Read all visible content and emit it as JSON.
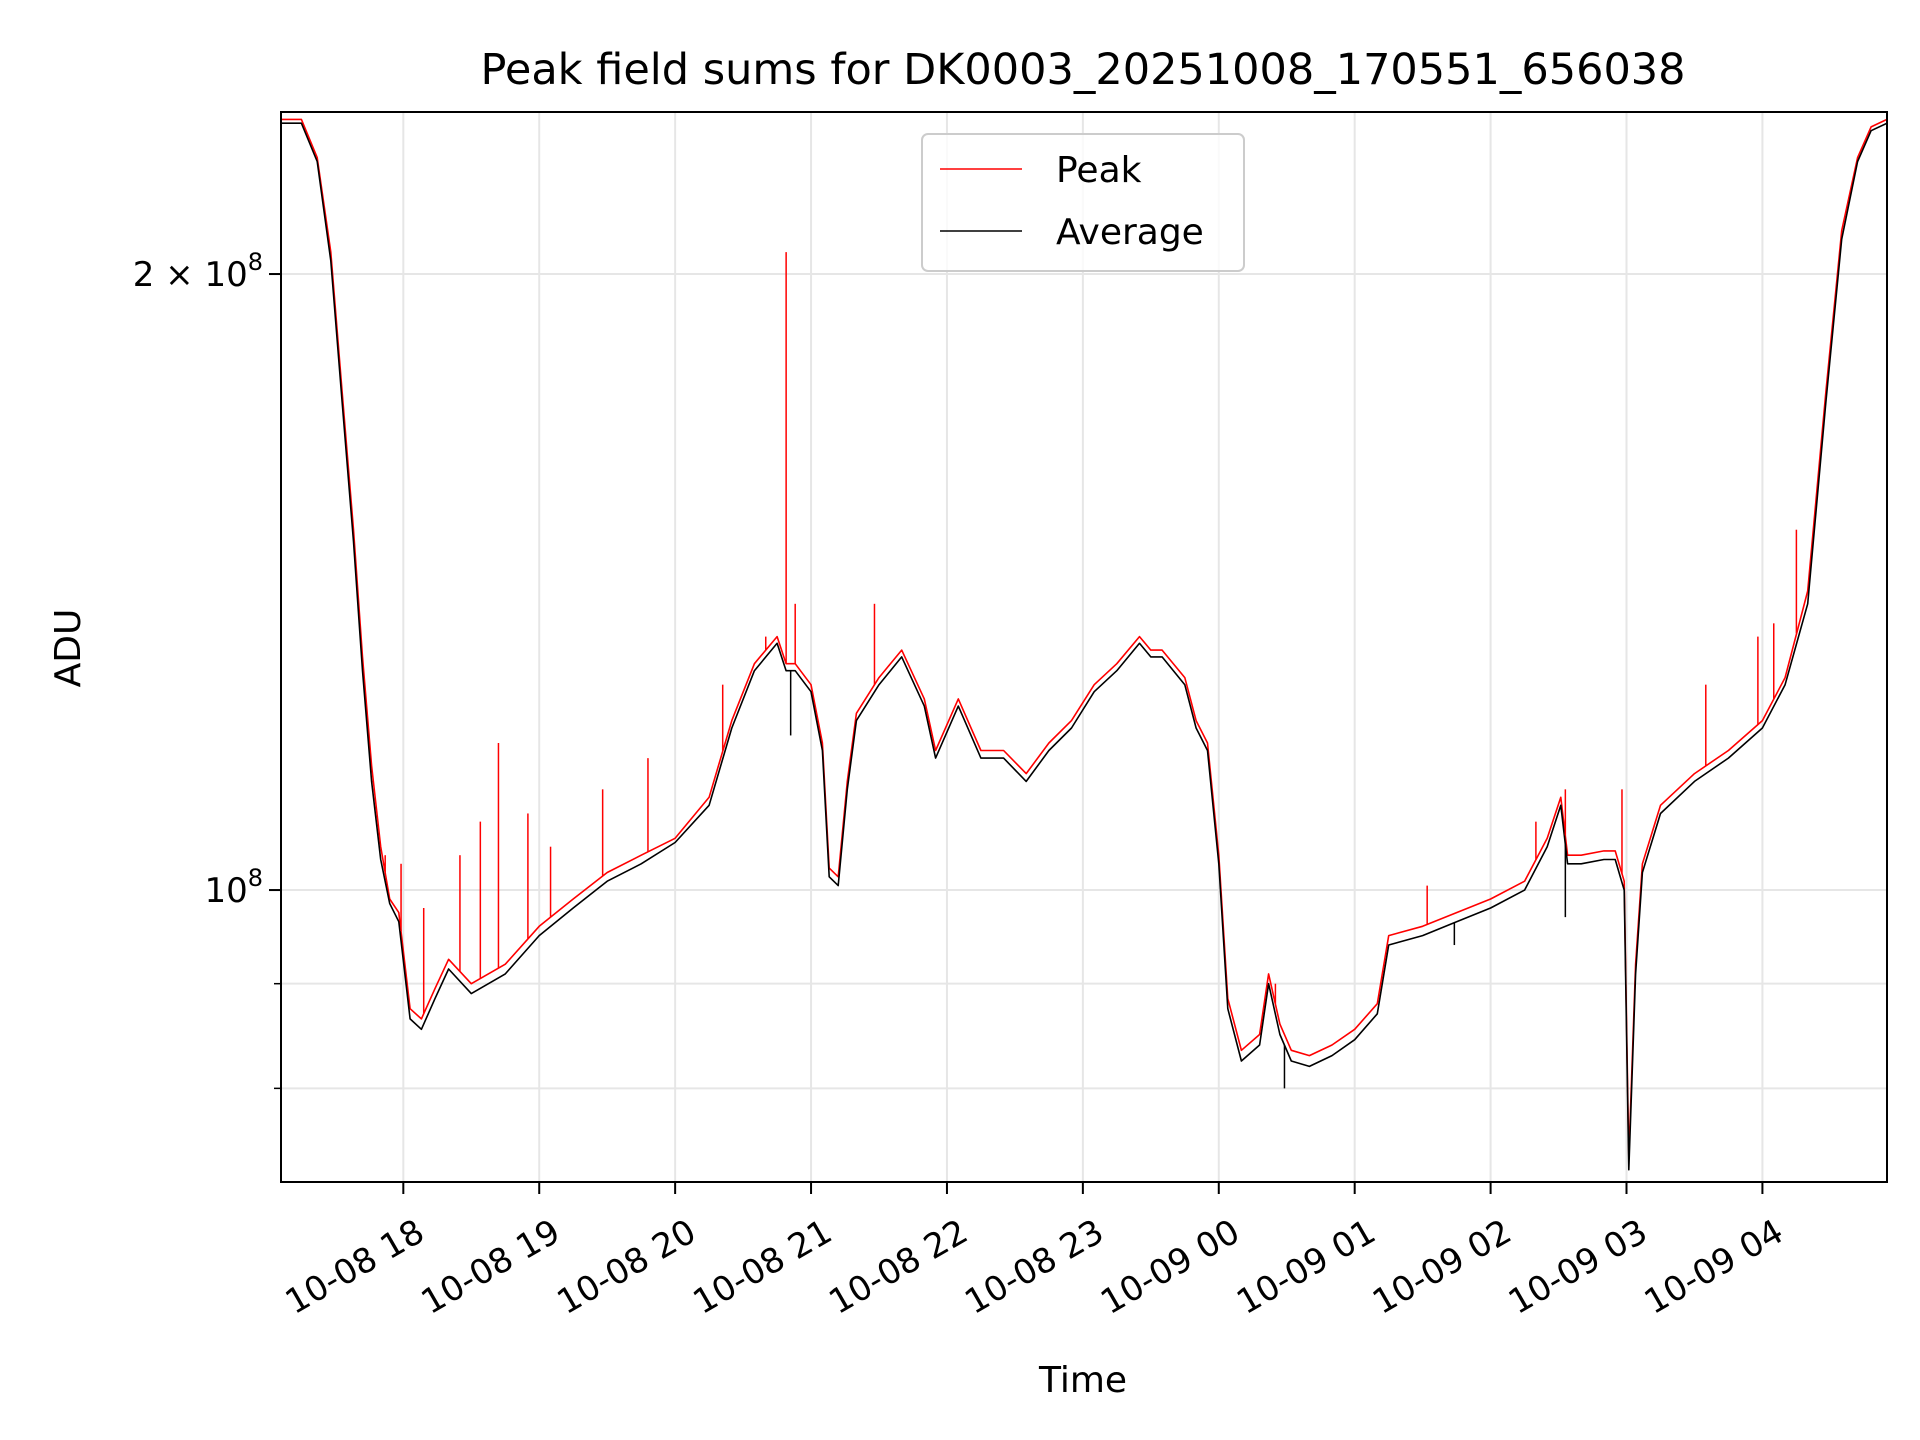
{
  "chart_data": {
    "type": "line",
    "title": "Peak field sums for DK0003_20251008_170551_656038",
    "xlabel": "Time",
    "ylabel": "ADU",
    "y_scale": "log",
    "xlim": [
      "2025-10-08 17:06",
      "2025-10-09 04:55"
    ],
    "ylim": [
      72000000,
      240000000
    ],
    "grid": true,
    "legend_position": "upper center",
    "x_ticks": [
      {
        "label": "10-08 18",
        "time": "2025-10-08 18:00"
      },
      {
        "label": "10-08 19",
        "time": "2025-10-08 19:00"
      },
      {
        "label": "10-08 20",
        "time": "2025-10-08 20:00"
      },
      {
        "label": "10-08 21",
        "time": "2025-10-08 21:00"
      },
      {
        "label": "10-08 22",
        "time": "2025-10-08 22:00"
      },
      {
        "label": "10-08 23",
        "time": "2025-10-08 23:00"
      },
      {
        "label": "10-09 00",
        "time": "2025-10-09 00:00"
      },
      {
        "label": "10-09 01",
        "time": "2025-10-09 01:00"
      },
      {
        "label": "10-09 02",
        "time": "2025-10-09 02:00"
      },
      {
        "label": "10-09 03",
        "time": "2025-10-09 03:00"
      },
      {
        "label": "10-09 04",
        "time": "2025-10-09 04:00"
      }
    ],
    "y_ticks_major": [
      {
        "label_base": "2 × 10",
        "label_exp": "8",
        "value": 200000000
      },
      {
        "label_base": "10",
        "label_exp": "8",
        "value": 100000000
      }
    ],
    "y_ticks_minor": [
      90000000,
      80000000
    ],
    "series": [
      {
        "name": "Peak",
        "color": "#ff0000",
        "x": [
          "2025-10-08 17:06",
          "2025-10-08 17:15",
          "2025-10-08 17:22",
          "2025-10-08 17:28",
          "2025-10-08 17:33",
          "2025-10-08 17:38",
          "2025-10-08 17:42",
          "2025-10-08 17:46",
          "2025-10-08 17:50",
          "2025-10-08 17:54",
          "2025-10-08 17:58",
          "2025-10-08 18:03",
          "2025-10-08 18:08",
          "2025-10-08 18:14",
          "2025-10-08 18:20",
          "2025-10-08 18:30",
          "2025-10-08 18:45",
          "2025-10-08 19:00",
          "2025-10-08 19:15",
          "2025-10-08 19:30",
          "2025-10-08 19:45",
          "2025-10-08 20:00",
          "2025-10-08 20:15",
          "2025-10-08 20:25",
          "2025-10-08 20:35",
          "2025-10-08 20:45",
          "2025-10-08 20:49",
          "2025-10-08 20:53",
          "2025-10-08 21:00",
          "2025-10-08 21:05",
          "2025-10-08 21:08",
          "2025-10-08 21:12",
          "2025-10-08 21:16",
          "2025-10-08 21:20",
          "2025-10-08 21:30",
          "2025-10-08 21:40",
          "2025-10-08 21:50",
          "2025-10-08 21:55",
          "2025-10-08 22:05",
          "2025-10-08 22:15",
          "2025-10-08 22:25",
          "2025-10-08 22:35",
          "2025-10-08 22:45",
          "2025-10-08 22:55",
          "2025-10-08 23:05",
          "2025-10-08 23:15",
          "2025-10-08 23:25",
          "2025-10-08 23:30",
          "2025-10-08 23:35",
          "2025-10-08 23:45",
          "2025-10-08 23:50",
          "2025-10-08 23:55",
          "2025-10-09 00:00",
          "2025-10-09 00:04",
          "2025-10-09 00:10",
          "2025-10-09 00:18",
          "2025-10-09 00:22",
          "2025-10-09 00:27",
          "2025-10-09 00:32",
          "2025-10-09 00:40",
          "2025-10-09 00:50",
          "2025-10-09 01:00",
          "2025-10-09 01:10",
          "2025-10-09 01:15",
          "2025-10-09 01:30",
          "2025-10-09 01:45",
          "2025-10-09 02:00",
          "2025-10-09 02:15",
          "2025-10-09 02:25",
          "2025-10-09 02:31",
          "2025-10-09 02:34",
          "2025-10-09 02:40",
          "2025-10-09 02:50",
          "2025-10-09 02:55",
          "2025-10-09 02:59",
          "2025-10-09 03:01",
          "2025-10-09 03:04",
          "2025-10-09 03:07",
          "2025-10-09 03:15",
          "2025-10-09 03:30",
          "2025-10-09 03:45",
          "2025-10-09 04:00",
          "2025-10-09 04:10",
          "2025-10-09 04:20",
          "2025-10-09 04:28",
          "2025-10-09 04:35",
          "2025-10-09 04:42",
          "2025-10-09 04:48",
          "2025-10-09 04:55"
        ],
        "y": [
          238000000,
          238000000,
          228000000,
          205000000,
          175000000,
          150000000,
          130000000,
          115000000,
          105000000,
          99000000,
          97500000,
          87500000,
          86500000,
          89500000,
          92500000,
          90000000,
          92000000,
          96000000,
          99000000,
          102000000,
          104000000,
          106000000,
          111000000,
          121000000,
          129000000,
          133000000,
          129000000,
          129000000,
          126000000,
          118000000,
          102500000,
          101500000,
          113000000,
          122000000,
          127000000,
          131000000,
          124000000,
          117000000,
          124000000,
          117000000,
          117000000,
          114000000,
          118000000,
          121000000,
          126000000,
          129000000,
          133000000,
          131000000,
          131000000,
          127000000,
          121000000,
          118000000,
          104000000,
          88500000,
          83500000,
          85000000,
          91000000,
          86000000,
          83500000,
          83000000,
          84000000,
          85500000,
          88000000,
          95000000,
          96000000,
          97500000,
          99000000,
          101000000,
          106000000,
          111000000,
          104000000,
          104000000,
          104500000,
          104500000,
          101000000,
          74000000,
          92000000,
          103000000,
          110000000,
          114000000,
          117000000,
          121000000,
          127000000,
          140000000,
          175000000,
          210000000,
          228000000,
          236000000,
          238000000
        ]
      },
      {
        "name": "Average",
        "color": "#000000",
        "x": [
          "2025-10-08 17:06",
          "2025-10-08 17:15",
          "2025-10-08 17:22",
          "2025-10-08 17:28",
          "2025-10-08 17:33",
          "2025-10-08 17:38",
          "2025-10-08 17:42",
          "2025-10-08 17:46",
          "2025-10-08 17:50",
          "2025-10-08 17:54",
          "2025-10-08 17:58",
          "2025-10-08 18:03",
          "2025-10-08 18:08",
          "2025-10-08 18:14",
          "2025-10-08 18:20",
          "2025-10-08 18:30",
          "2025-10-08 18:45",
          "2025-10-08 19:00",
          "2025-10-08 19:15",
          "2025-10-08 19:30",
          "2025-10-08 19:45",
          "2025-10-08 20:00",
          "2025-10-08 20:15",
          "2025-10-08 20:25",
          "2025-10-08 20:35",
          "2025-10-08 20:45",
          "2025-10-08 20:49",
          "2025-10-08 20:53",
          "2025-10-08 21:00",
          "2025-10-08 21:05",
          "2025-10-08 21:08",
          "2025-10-08 21:12",
          "2025-10-08 21:16",
          "2025-10-08 21:20",
          "2025-10-08 21:30",
          "2025-10-08 21:40",
          "2025-10-08 21:50",
          "2025-10-08 21:55",
          "2025-10-08 22:05",
          "2025-10-08 22:15",
          "2025-10-08 22:25",
          "2025-10-08 22:35",
          "2025-10-08 22:45",
          "2025-10-08 22:55",
          "2025-10-08 23:05",
          "2025-10-08 23:15",
          "2025-10-08 23:25",
          "2025-10-08 23:30",
          "2025-10-08 23:35",
          "2025-10-08 23:45",
          "2025-10-08 23:50",
          "2025-10-08 23:55",
          "2025-10-09 00:00",
          "2025-10-09 00:04",
          "2025-10-09 00:10",
          "2025-10-09 00:18",
          "2025-10-09 00:22",
          "2025-10-09 00:27",
          "2025-10-09 00:32",
          "2025-10-09 00:40",
          "2025-10-09 00:50",
          "2025-10-09 01:00",
          "2025-10-09 01:10",
          "2025-10-09 01:15",
          "2025-10-09 01:30",
          "2025-10-09 01:45",
          "2025-10-09 02:00",
          "2025-10-09 02:15",
          "2025-10-09 02:25",
          "2025-10-09 02:31",
          "2025-10-09 02:34",
          "2025-10-09 02:40",
          "2025-10-09 02:50",
          "2025-10-09 02:55",
          "2025-10-09 02:59",
          "2025-10-09 03:01",
          "2025-10-09 03:04",
          "2025-10-09 03:07",
          "2025-10-09 03:15",
          "2025-10-09 03:30",
          "2025-10-09 03:45",
          "2025-10-09 04:00",
          "2025-10-09 04:10",
          "2025-10-09 04:20",
          "2025-10-09 04:28",
          "2025-10-09 04:35",
          "2025-10-09 04:42",
          "2025-10-09 04:48",
          "2025-10-09 04:55"
        ],
        "y": [
          237000000,
          237000000,
          227000000,
          203000000,
          173000000,
          148000000,
          128000000,
          113000000,
          103500000,
          98500000,
          96500000,
          86500000,
          85500000,
          88500000,
          91500000,
          89000000,
          91000000,
          95000000,
          98000000,
          101000000,
          103000000,
          105500000,
          110000000,
          120000000,
          128000000,
          132000000,
          128000000,
          128000000,
          125000000,
          117000000,
          101500000,
          100500000,
          112000000,
          121000000,
          126000000,
          130000000,
          123000000,
          116000000,
          123000000,
          116000000,
          116000000,
          113000000,
          117000000,
          120000000,
          125000000,
          128000000,
          132000000,
          130000000,
          130000000,
          126000000,
          120000000,
          117000000,
          103000000,
          87500000,
          82500000,
          84000000,
          90000000,
          85000000,
          82500000,
          82000000,
          83000000,
          84500000,
          87000000,
          94000000,
          95000000,
          96500000,
          98000000,
          100000000,
          105000000,
          110000000,
          103000000,
          103000000,
          103500000,
          103500000,
          100000000,
          73000000,
          91000000,
          102000000,
          109000000,
          113000000,
          116000000,
          120000000,
          126000000,
          138000000,
          173000000,
          208000000,
          227000000,
          235000000,
          237000000
        ]
      }
    ],
    "peak_spikes": [
      {
        "x": "2025-10-08 17:52",
        "y": 104000000
      },
      {
        "x": "2025-10-08 17:59",
        "y": 103000000
      },
      {
        "x": "2025-10-08 18:09",
        "y": 98000000
      },
      {
        "x": "2025-10-08 18:25",
        "y": 104000000
      },
      {
        "x": "2025-10-08 18:34",
        "y": 108000000
      },
      {
        "x": "2025-10-08 18:42",
        "y": 118000000
      },
      {
        "x": "2025-10-08 18:55",
        "y": 109000000
      },
      {
        "x": "2025-10-08 19:05",
        "y": 105000000
      },
      {
        "x": "2025-10-08 19:28",
        "y": 112000000
      },
      {
        "x": "2025-10-08 19:48",
        "y": 116000000
      },
      {
        "x": "2025-10-08 20:21",
        "y": 126000000
      },
      {
        "x": "2025-10-08 20:40",
        "y": 133000000
      },
      {
        "x": "2025-10-08 20:49",
        "y": 205000000
      },
      {
        "x": "2025-10-08 20:53",
        "y": 138000000
      },
      {
        "x": "2025-10-08 21:28",
        "y": 138000000
      },
      {
        "x": "2025-10-09 00:25",
        "y": 90000000
      },
      {
        "x": "2025-10-09 01:32",
        "y": 100500000
      },
      {
        "x": "2025-10-09 02:20",
        "y": 108000000
      },
      {
        "x": "2025-10-09 02:33",
        "y": 112000000
      },
      {
        "x": "2025-10-09 02:58",
        "y": 112000000
      },
      {
        "x": "2025-10-09 03:35",
        "y": 126000000
      },
      {
        "x": "2025-10-09 03:58",
        "y": 133000000
      },
      {
        "x": "2025-10-09 04:05",
        "y": 135000000
      },
      {
        "x": "2025-10-09 04:15",
        "y": 150000000
      }
    ],
    "average_dips": [
      {
        "x": "2025-10-08 20:51",
        "y": 119000000
      },
      {
        "x": "2025-10-09 00:29",
        "y": 80000000
      },
      {
        "x": "2025-10-09 02:33",
        "y": 97000000
      },
      {
        "x": "2025-10-09 01:44",
        "y": 94000000
      }
    ]
  }
}
